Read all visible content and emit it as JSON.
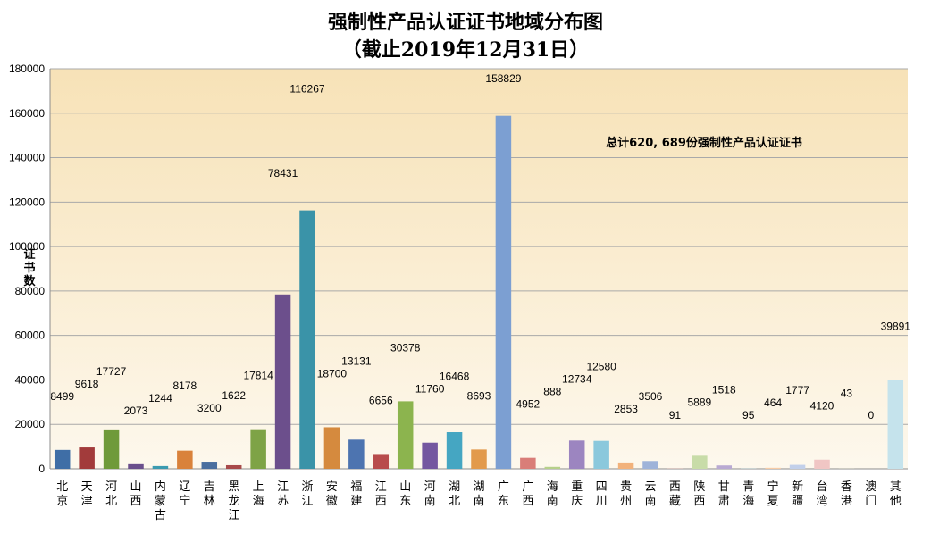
{
  "chart_data": {
    "type": "bar",
    "title_line1": "强制性产品认证证书地域分布图",
    "title_line2": "（截止2019年12月31日）",
    "ylabel": [
      "证",
      "书",
      "数"
    ],
    "annotation": "总计620, 689份强制性产品认证证书",
    "ylim": [
      0,
      180000
    ],
    "yticks": [
      0,
      20000,
      40000,
      60000,
      80000,
      100000,
      120000,
      140000,
      160000,
      180000
    ],
    "grid": true,
    "categories": [
      [
        "北",
        "京"
      ],
      [
        "天",
        "津"
      ],
      [
        "河",
        "北"
      ],
      [
        "山",
        "西"
      ],
      [
        "内",
        "蒙",
        "古"
      ],
      [
        "辽",
        "宁"
      ],
      [
        "吉",
        "林"
      ],
      [
        "黑",
        "龙",
        "江"
      ],
      [
        "上",
        "海"
      ],
      [
        "江",
        "苏"
      ],
      [
        "浙",
        "江"
      ],
      [
        "安",
        "徽"
      ],
      [
        "福",
        "建"
      ],
      [
        "江",
        "西"
      ],
      [
        "山",
        "东"
      ],
      [
        "河",
        "南"
      ],
      [
        "湖",
        "北"
      ],
      [
        "湖",
        "南"
      ],
      [
        "广",
        "东"
      ],
      [
        "广",
        "西"
      ],
      [
        "海",
        "南"
      ],
      [
        "重",
        "庆"
      ],
      [
        "四",
        "川"
      ],
      [
        "贵",
        "州"
      ],
      [
        "云",
        "南"
      ],
      [
        "西",
        "藏"
      ],
      [
        "陕",
        "西"
      ],
      [
        "甘",
        "肃"
      ],
      [
        "青",
        "海"
      ],
      [
        "宁",
        "夏"
      ],
      [
        "新",
        "疆"
      ],
      [
        "台",
        "湾"
      ],
      [
        "香",
        "港"
      ],
      [
        "澳",
        "门"
      ],
      [
        "其",
        "他"
      ]
    ],
    "values": [
      8499,
      9618,
      17727,
      2073,
      1244,
      8178,
      3200,
      1622,
      17814,
      78431,
      116267,
      18700,
      13131,
      6656,
      30378,
      11760,
      16468,
      8693,
      158829,
      4952,
      888,
      12734,
      12580,
      2853,
      3506,
      91,
      5889,
      1518,
      95,
      464,
      1777,
      4120,
      43,
      0,
      39891
    ],
    "colors": [
      "#3f6ea6",
      "#a23b3b",
      "#6f9a3a",
      "#6a4f8c",
      "#3b9bb0",
      "#d9823b",
      "#4a6f9f",
      "#a84a4a",
      "#7ea346",
      "#6c4f8c",
      "#3a93a8",
      "#d58a3e",
      "#4d74b0",
      "#b84c4c",
      "#8cb44e",
      "#7457a0",
      "#45a6c2",
      "#e29a4c",
      "#7c9fd2",
      "#d97d78",
      "#b6d08a",
      "#9c85c0",
      "#8bc8dc",
      "#f2b27b",
      "#9eb3d9",
      "#e7a9a6",
      "#c8dca8",
      "#b9aad2",
      "#a6d5e4",
      "#f6cba5",
      "#c2d0ea",
      "#f0c6c4",
      "#dbe7c8",
      "#d4cce4",
      "#c5e3ec"
    ]
  }
}
